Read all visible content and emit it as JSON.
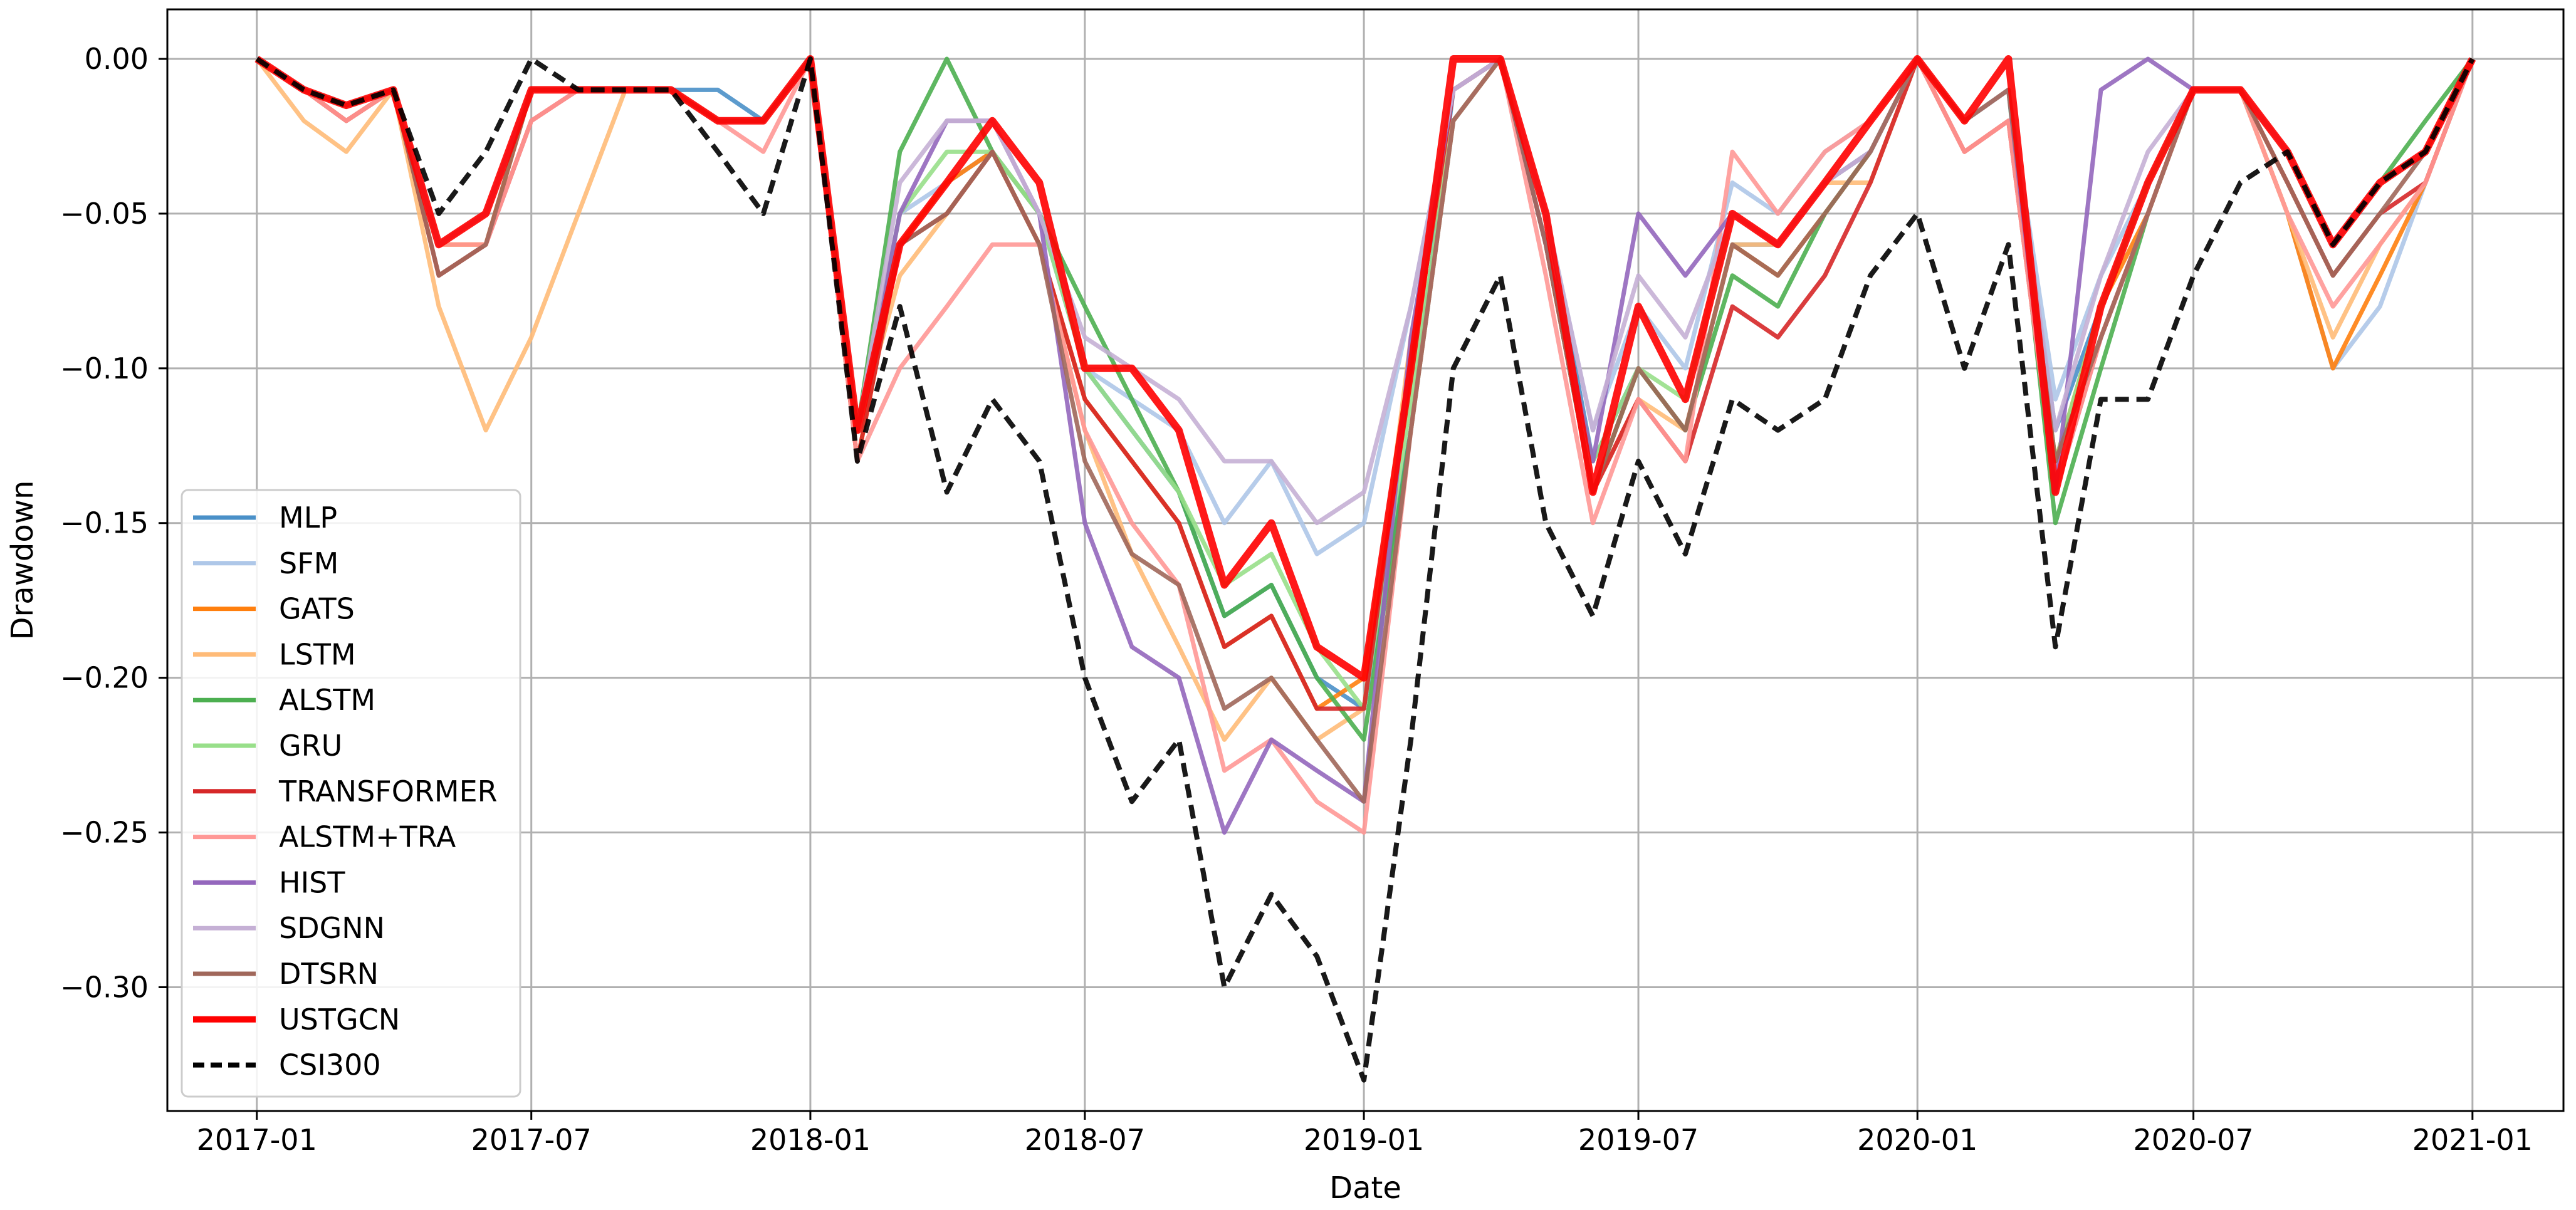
{
  "chart_data": {
    "type": "line",
    "xlabel": "Date",
    "ylabel": "Drawdown",
    "xlim": [
      "2016-11-03",
      "2021-03-02"
    ],
    "ylim": [
      -0.34,
      0.016
    ],
    "grid": true,
    "legend_position": "lower-left",
    "x_ticks": [
      "2017-01",
      "2017-07",
      "2018-01",
      "2018-07",
      "2019-01",
      "2019-07",
      "2020-01",
      "2020-07",
      "2021-01"
    ],
    "y_ticks": [
      0.0,
      -0.05,
      -0.1,
      -0.15,
      -0.2,
      -0.25,
      -0.3
    ],
    "y_tick_labels": [
      "0.00",
      "−0.05",
      "−0.10",
      "−0.15",
      "−0.20",
      "−0.25",
      "−0.30"
    ],
    "x": [
      "2017-01-01",
      "2017-02-01",
      "2017-03-01",
      "2017-04-01",
      "2017-05-01",
      "2017-06-01",
      "2017-07-01",
      "2017-08-01",
      "2017-09-01",
      "2017-10-01",
      "2017-11-01",
      "2017-12-01",
      "2018-01-01",
      "2018-02-01",
      "2018-03-01",
      "2018-04-01",
      "2018-05-01",
      "2018-06-01",
      "2018-07-01",
      "2018-08-01",
      "2018-09-01",
      "2018-10-01",
      "2018-11-01",
      "2018-12-01",
      "2019-01-01",
      "2019-02-01",
      "2019-03-01",
      "2019-04-01",
      "2019-05-01",
      "2019-06-01",
      "2019-07-01",
      "2019-08-01",
      "2019-09-01",
      "2019-10-01",
      "2019-11-01",
      "2019-12-01",
      "2020-01-01",
      "2020-02-01",
      "2020-03-01",
      "2020-04-01",
      "2020-05-01",
      "2020-06-01",
      "2020-07-01",
      "2020-08-01",
      "2020-09-01",
      "2020-10-01",
      "2020-11-01",
      "2020-12-01",
      "2021-01-01"
    ],
    "series": [
      {
        "name": "MLP",
        "color": "#4a90c8",
        "width": 7,
        "dash": "",
        "values": [
          0,
          -0.01,
          -0.015,
          -0.01,
          -0.06,
          -0.05,
          -0.01,
          -0.01,
          -0.01,
          -0.01,
          -0.01,
          -0.02,
          0,
          -0.12,
          -0.06,
          -0.04,
          -0.03,
          -0.05,
          -0.1,
          -0.12,
          -0.14,
          -0.18,
          -0.17,
          -0.2,
          -0.21,
          -0.12,
          -0.01,
          0,
          -0.05,
          -0.13,
          -0.1,
          -0.12,
          -0.06,
          -0.06,
          -0.04,
          -0.03,
          0,
          -0.02,
          -0.01,
          -0.12,
          -0.08,
          -0.04,
          -0.01,
          -0.01,
          -0.03,
          -0.06,
          -0.04,
          -0.03,
          0
        ]
      },
      {
        "name": "SFM",
        "color": "#aec7e8",
        "width": 7,
        "dash": "",
        "values": [
          0,
          -0.01,
          -0.02,
          -0.01,
          -0.06,
          -0.05,
          -0.01,
          -0.01,
          -0.01,
          -0.01,
          -0.02,
          -0.02,
          0,
          -0.12,
          -0.05,
          -0.04,
          -0.03,
          -0.05,
          -0.1,
          -0.11,
          -0.12,
          -0.15,
          -0.13,
          -0.16,
          -0.15,
          -0.08,
          -0.01,
          0,
          -0.05,
          -0.12,
          -0.08,
          -0.1,
          -0.04,
          -0.05,
          -0.03,
          -0.02,
          0,
          -0.02,
          -0.01,
          -0.11,
          -0.07,
          -0.04,
          -0.01,
          -0.01,
          -0.05,
          -0.1,
          -0.08,
          -0.04,
          0
        ]
      },
      {
        "name": "GATS",
        "color": "#ff7f0e",
        "width": 7,
        "dash": "",
        "values": [
          0,
          -0.01,
          -0.02,
          -0.01,
          -0.06,
          -0.06,
          -0.01,
          -0.01,
          -0.01,
          -0.01,
          -0.02,
          -0.02,
          0,
          -0.13,
          -0.06,
          -0.04,
          -0.03,
          -0.06,
          -0.11,
          -0.13,
          -0.15,
          -0.19,
          -0.18,
          -0.21,
          -0.2,
          -0.1,
          -0.01,
          0,
          -0.06,
          -0.14,
          -0.1,
          -0.12,
          -0.06,
          -0.07,
          -0.05,
          -0.03,
          0,
          -0.02,
          -0.01,
          -0.13,
          -0.08,
          -0.05,
          -0.01,
          -0.01,
          -0.05,
          -0.1,
          -0.07,
          -0.04,
          0
        ]
      },
      {
        "name": "LSTM",
        "color": "#ffbb78",
        "width": 7,
        "dash": "",
        "values": [
          0,
          -0.02,
          -0.03,
          -0.01,
          -0.08,
          -0.12,
          -0.09,
          -0.05,
          -0.01,
          -0.01,
          -0.02,
          -0.02,
          0,
          -0.12,
          -0.07,
          -0.05,
          -0.03,
          -0.06,
          -0.12,
          -0.16,
          -0.19,
          -0.22,
          -0.2,
          -0.22,
          -0.21,
          -0.09,
          -0.02,
          0,
          -0.06,
          -0.14,
          -0.11,
          -0.12,
          -0.06,
          -0.06,
          -0.04,
          -0.04,
          0,
          -0.03,
          -0.02,
          -0.13,
          -0.09,
          -0.05,
          -0.01,
          -0.01,
          -0.05,
          -0.09,
          -0.06,
          -0.04,
          0
        ]
      },
      {
        "name": "ALSTM",
        "color": "#4caf50",
        "width": 7,
        "dash": "",
        "values": [
          0,
          -0.01,
          -0.015,
          -0.01,
          -0.06,
          -0.05,
          -0.01,
          -0.01,
          -0.01,
          -0.01,
          -0.02,
          -0.02,
          0,
          -0.12,
          -0.03,
          0,
          -0.03,
          -0.05,
          -0.08,
          -0.11,
          -0.14,
          -0.18,
          -0.17,
          -0.2,
          -0.22,
          -0.12,
          -0.02,
          0,
          -0.06,
          -0.14,
          -0.1,
          -0.12,
          -0.07,
          -0.08,
          -0.05,
          -0.03,
          0,
          -0.02,
          -0.01,
          -0.15,
          -0.1,
          -0.05,
          -0.01,
          -0.01,
          -0.03,
          -0.06,
          -0.04,
          -0.02,
          0
        ]
      },
      {
        "name": "GRU",
        "color": "#98df8a",
        "width": 7,
        "dash": "",
        "values": [
          0,
          -0.01,
          -0.015,
          -0.01,
          -0.06,
          -0.05,
          -0.01,
          -0.01,
          -0.01,
          -0.01,
          -0.02,
          -0.02,
          0,
          -0.12,
          -0.05,
          -0.03,
          -0.03,
          -0.05,
          -0.1,
          -0.12,
          -0.14,
          -0.17,
          -0.16,
          -0.19,
          -0.21,
          -0.11,
          -0.02,
          0,
          -0.06,
          -0.13,
          -0.1,
          -0.11,
          -0.05,
          -0.06,
          -0.04,
          -0.03,
          0,
          -0.02,
          -0.01,
          -0.13,
          -0.08,
          -0.04,
          -0.01,
          -0.01,
          -0.03,
          -0.06,
          -0.04,
          -0.03,
          0
        ]
      },
      {
        "name": "TRANSFORMER",
        "color": "#d62728",
        "width": 7,
        "dash": "",
        "values": [
          0,
          -0.01,
          -0.02,
          -0.01,
          -0.07,
          -0.06,
          -0.02,
          -0.01,
          -0.01,
          -0.01,
          -0.02,
          -0.02,
          0,
          -0.13,
          -0.06,
          -0.05,
          -0.03,
          -0.06,
          -0.11,
          -0.13,
          -0.15,
          -0.19,
          -0.18,
          -0.21,
          -0.21,
          -0.1,
          -0.01,
          0,
          -0.06,
          -0.14,
          -0.11,
          -0.13,
          -0.08,
          -0.09,
          -0.07,
          -0.04,
          0,
          -0.03,
          -0.02,
          -0.14,
          -0.09,
          -0.05,
          -0.01,
          -0.01,
          -0.04,
          -0.07,
          -0.05,
          -0.04,
          0
        ]
      },
      {
        "name": "ALSTM+TRA",
        "color": "#ff9896",
        "width": 7,
        "dash": "",
        "values": [
          0,
          -0.01,
          -0.02,
          -0.01,
          -0.06,
          -0.06,
          -0.02,
          -0.01,
          -0.01,
          -0.01,
          -0.02,
          -0.03,
          0,
          -0.13,
          -0.1,
          -0.08,
          -0.06,
          -0.06,
          -0.12,
          -0.15,
          -0.17,
          -0.23,
          -0.22,
          -0.24,
          -0.25,
          -0.12,
          -0.02,
          0,
          -0.07,
          -0.15,
          -0.11,
          -0.13,
          -0.03,
          -0.05,
          -0.03,
          -0.02,
          0,
          -0.03,
          -0.02,
          -0.14,
          -0.09,
          -0.05,
          -0.01,
          -0.01,
          -0.05,
          -0.08,
          -0.06,
          -0.04,
          0
        ]
      },
      {
        "name": "HIST",
        "color": "#9467bd",
        "width": 7,
        "dash": "",
        "values": [
          0,
          -0.01,
          -0.015,
          -0.01,
          -0.06,
          -0.05,
          -0.01,
          -0.01,
          -0.01,
          -0.01,
          -0.02,
          -0.02,
          0,
          -0.12,
          -0.05,
          -0.02,
          -0.02,
          -0.05,
          -0.15,
          -0.19,
          -0.2,
          -0.25,
          -0.22,
          -0.23,
          -0.24,
          -0.09,
          -0.01,
          0,
          -0.06,
          -0.13,
          -0.05,
          -0.07,
          -0.05,
          -0.06,
          -0.04,
          -0.03,
          0,
          -0.02,
          -0.01,
          -0.14,
          -0.01,
          0,
          -0.01,
          -0.01,
          -0.03,
          -0.06,
          -0.04,
          -0.03,
          0
        ]
      },
      {
        "name": "SDGNN",
        "color": "#c5b0d5",
        "width": 7,
        "dash": "",
        "values": [
          0,
          -0.01,
          -0.015,
          -0.01,
          -0.06,
          -0.05,
          -0.01,
          -0.01,
          -0.01,
          -0.01,
          -0.02,
          -0.02,
          0,
          -0.12,
          -0.04,
          -0.02,
          -0.02,
          -0.05,
          -0.09,
          -0.1,
          -0.11,
          -0.13,
          -0.13,
          -0.15,
          -0.14,
          -0.08,
          -0.01,
          0,
          -0.05,
          -0.12,
          -0.07,
          -0.09,
          -0.05,
          -0.06,
          -0.04,
          -0.03,
          0,
          -0.02,
          -0.01,
          -0.12,
          -0.07,
          -0.03,
          -0.01,
          -0.01,
          -0.03,
          -0.06,
          -0.04,
          -0.03,
          0
        ]
      },
      {
        "name": "DTSRN",
        "color": "#a0675a",
        "width": 7,
        "dash": "",
        "values": [
          0,
          -0.01,
          -0.015,
          -0.01,
          -0.07,
          -0.06,
          -0.01,
          -0.01,
          -0.01,
          -0.01,
          -0.02,
          -0.02,
          0,
          -0.12,
          -0.06,
          -0.05,
          -0.03,
          -0.06,
          -0.13,
          -0.16,
          -0.17,
          -0.21,
          -0.2,
          -0.22,
          -0.24,
          -0.12,
          -0.02,
          0,
          -0.06,
          -0.14,
          -0.1,
          -0.12,
          -0.06,
          -0.07,
          -0.05,
          -0.03,
          0,
          -0.02,
          -0.01,
          -0.13,
          -0.09,
          -0.05,
          -0.01,
          -0.01,
          -0.04,
          -0.07,
          -0.05,
          -0.03,
          0
        ]
      },
      {
        "name": "USTGCN",
        "color": "#ff0000",
        "width": 12,
        "dash": "",
        "values": [
          0,
          -0.01,
          -0.015,
          -0.01,
          -0.06,
          -0.05,
          -0.01,
          -0.01,
          -0.01,
          -0.01,
          -0.02,
          -0.02,
          0,
          -0.12,
          -0.06,
          -0.04,
          -0.02,
          -0.04,
          -0.1,
          -0.1,
          -0.12,
          -0.17,
          -0.15,
          -0.19,
          -0.2,
          -0.1,
          0,
          0,
          -0.05,
          -0.14,
          -0.08,
          -0.11,
          -0.05,
          -0.06,
          -0.04,
          -0.02,
          0,
          -0.02,
          0,
          -0.14,
          -0.08,
          -0.04,
          -0.01,
          -0.01,
          -0.03,
          -0.06,
          -0.04,
          -0.03,
          0
        ]
      },
      {
        "name": "CSI300",
        "color": "#000000",
        "width": 8,
        "dash": "22,12",
        "values": [
          0,
          -0.01,
          -0.015,
          -0.01,
          -0.05,
          -0.03,
          0,
          -0.01,
          -0.01,
          -0.01,
          -0.03,
          -0.05,
          0,
          -0.13,
          -0.08,
          -0.14,
          -0.11,
          -0.13,
          -0.2,
          -0.24,
          -0.22,
          -0.3,
          -0.27,
          -0.29,
          -0.33,
          -0.22,
          -0.1,
          -0.07,
          -0.15,
          -0.18,
          -0.13,
          -0.16,
          -0.11,
          -0.12,
          -0.11,
          -0.07,
          -0.05,
          -0.1,
          -0.06,
          -0.19,
          -0.11,
          -0.11,
          -0.07,
          -0.04,
          -0.03,
          -0.06,
          -0.04,
          -0.03,
          0
        ]
      }
    ]
  }
}
